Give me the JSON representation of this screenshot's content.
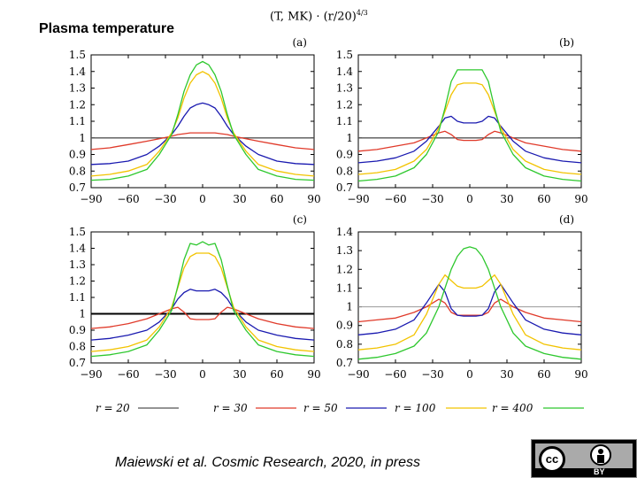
{
  "slide": {
    "title": "Plasma temperature",
    "formula": "(T, MK) · (r/20)",
    "formula_exp": "4/3",
    "citation": "Maiewski et al. Cosmic Research, 2020, in press"
  },
  "license": {
    "cc": "cc",
    "by": "BY"
  },
  "chart_data": [
    {
      "type": "line",
      "panel": "(a)",
      "xlim": [
        -90,
        90
      ],
      "ylim": [
        0.7,
        1.5
      ],
      "xticks": [
        -90,
        -60,
        -30,
        0,
        30,
        60,
        90
      ],
      "yticks": [
        0.7,
        0.8,
        0.9,
        1,
        1.1,
        1.2,
        1.3,
        1.4,
        1.5
      ],
      "x": [
        -90,
        -75,
        -60,
        -45,
        -35,
        -25,
        -20,
        -15,
        -10,
        -5,
        0,
        5,
        10,
        15,
        20,
        25,
        35,
        45,
        60,
        75,
        90
      ],
      "series": [
        {
          "name": "r = 20",
          "color": "#555555",
          "values": [
            1,
            1,
            1,
            1,
            1,
            1,
            1,
            1,
            1,
            1,
            1,
            1,
            1,
            1,
            1,
            1,
            1,
            1,
            1,
            1,
            1
          ]
        },
        {
          "name": "r = 30",
          "color": "#e03a2a",
          "values": [
            0.93,
            0.94,
            0.96,
            0.98,
            0.995,
            1.01,
            1.02,
            1.025,
            1.03,
            1.03,
            1.03,
            1.03,
            1.03,
            1.025,
            1.02,
            1.01,
            0.995,
            0.98,
            0.96,
            0.94,
            0.93
          ]
        },
        {
          "name": "r = 50",
          "color": "#1a1ab0",
          "values": [
            0.84,
            0.845,
            0.86,
            0.9,
            0.95,
            1.02,
            1.07,
            1.13,
            1.18,
            1.2,
            1.21,
            1.2,
            1.18,
            1.13,
            1.07,
            1.02,
            0.95,
            0.9,
            0.86,
            0.845,
            0.84
          ]
        },
        {
          "name": "r = 100",
          "color": "#f2c300",
          "values": [
            0.77,
            0.78,
            0.8,
            0.84,
            0.92,
            1.03,
            1.12,
            1.24,
            1.33,
            1.38,
            1.4,
            1.38,
            1.33,
            1.24,
            1.12,
            1.03,
            0.92,
            0.84,
            0.8,
            0.78,
            0.77
          ]
        },
        {
          "name": "r = 400",
          "color": "#2ec82e",
          "values": [
            0.745,
            0.75,
            0.77,
            0.81,
            0.9,
            1.02,
            1.14,
            1.28,
            1.38,
            1.44,
            1.46,
            1.44,
            1.38,
            1.28,
            1.14,
            1.02,
            0.9,
            0.81,
            0.77,
            0.75,
            0.745
          ]
        }
      ]
    },
    {
      "type": "line",
      "panel": "(b)",
      "xlim": [
        -90,
        90
      ],
      "ylim": [
        0.7,
        1.5
      ],
      "xticks": [
        -90,
        -60,
        -30,
        0,
        30,
        60,
        90
      ],
      "yticks": [
        0.7,
        0.8,
        0.9,
        1,
        1.1,
        1.2,
        1.3,
        1.4,
        1.5
      ],
      "x": [
        -90,
        -75,
        -60,
        -45,
        -35,
        -25,
        -20,
        -15,
        -10,
        -5,
        0,
        5,
        10,
        15,
        20,
        25,
        35,
        45,
        60,
        75,
        90
      ],
      "series": [
        {
          "name": "r = 20",
          "color": "#555555",
          "values": [
            1,
            1,
            1,
            1,
            1,
            1,
            1,
            1,
            1,
            1,
            1,
            1,
            1,
            1,
            1,
            1,
            1,
            1,
            1,
            1,
            1
          ]
        },
        {
          "name": "r = 30",
          "color": "#e03a2a",
          "values": [
            0.92,
            0.93,
            0.95,
            0.97,
            1.0,
            1.03,
            1.04,
            1.02,
            0.99,
            0.985,
            0.985,
            0.985,
            0.99,
            1.02,
            1.04,
            1.03,
            1.0,
            0.97,
            0.95,
            0.93,
            0.92
          ]
        },
        {
          "name": "r = 50",
          "color": "#1a1ab0",
          "values": [
            0.85,
            0.86,
            0.88,
            0.92,
            0.98,
            1.07,
            1.12,
            1.13,
            1.1,
            1.09,
            1.09,
            1.09,
            1.1,
            1.13,
            1.12,
            1.07,
            0.98,
            0.92,
            0.88,
            0.86,
            0.85
          ]
        },
        {
          "name": "r = 100",
          "color": "#f2c300",
          "values": [
            0.78,
            0.79,
            0.81,
            0.86,
            0.93,
            1.06,
            1.16,
            1.26,
            1.32,
            1.33,
            1.33,
            1.33,
            1.32,
            1.26,
            1.16,
            1.06,
            0.93,
            0.86,
            0.81,
            0.79,
            0.78
          ]
        },
        {
          "name": "r = 400",
          "color": "#2ec82e",
          "values": [
            0.74,
            0.75,
            0.77,
            0.82,
            0.9,
            1.04,
            1.18,
            1.34,
            1.41,
            1.41,
            1.41,
            1.41,
            1.41,
            1.34,
            1.18,
            1.04,
            0.9,
            0.82,
            0.77,
            0.75,
            0.74
          ]
        }
      ]
    },
    {
      "type": "line",
      "panel": "(c)",
      "xlim": [
        -90,
        90
      ],
      "ylim": [
        0.7,
        1.5
      ],
      "xticks": [
        -90,
        -60,
        -30,
        0,
        30,
        60,
        90
      ],
      "yticks": [
        0.7,
        0.8,
        0.9,
        1,
        1.1,
        1.2,
        1.3,
        1.4,
        1.5
      ],
      "x": [
        -90,
        -75,
        -60,
        -45,
        -35,
        -25,
        -20,
        -15,
        -10,
        -5,
        0,
        5,
        10,
        15,
        20,
        25,
        35,
        45,
        60,
        75,
        90
      ],
      "series": [
        {
          "name": "r = 20",
          "color": "#555555",
          "values": [
            1,
            1,
            1,
            1,
            1,
            1,
            1,
            1,
            1,
            1,
            1,
            1,
            1,
            1,
            1,
            1,
            1,
            1,
            1,
            1,
            1
          ]
        },
        {
          "name": "r = 30",
          "color": "#e03a2a",
          "values": [
            0.91,
            0.92,
            0.94,
            0.97,
            1.0,
            1.03,
            1.04,
            1.01,
            0.97,
            0.965,
            0.965,
            0.965,
            0.97,
            1.01,
            1.04,
            1.03,
            1.0,
            0.97,
            0.94,
            0.92,
            0.91
          ]
        },
        {
          "name": "r = 50",
          "color": "#1a1ab0",
          "values": [
            0.84,
            0.85,
            0.87,
            0.9,
            0.95,
            1.03,
            1.09,
            1.13,
            1.15,
            1.14,
            1.14,
            1.14,
            1.15,
            1.13,
            1.09,
            1.03,
            0.95,
            0.9,
            0.87,
            0.85,
            0.84
          ]
        },
        {
          "name": "r = 100",
          "color": "#f2c300",
          "values": [
            0.77,
            0.78,
            0.8,
            0.84,
            0.92,
            1.04,
            1.16,
            1.28,
            1.35,
            1.37,
            1.37,
            1.37,
            1.35,
            1.28,
            1.16,
            1.04,
            0.92,
            0.84,
            0.8,
            0.78,
            0.77
          ]
        },
        {
          "name": "r = 400",
          "color": "#2ec82e",
          "values": [
            0.74,
            0.75,
            0.77,
            0.81,
            0.9,
            1.02,
            1.17,
            1.33,
            1.43,
            1.42,
            1.44,
            1.42,
            1.43,
            1.33,
            1.17,
            1.02,
            0.9,
            0.81,
            0.77,
            0.75,
            0.74
          ]
        }
      ]
    },
    {
      "type": "line",
      "panel": "(d)",
      "xlim": [
        -90,
        90
      ],
      "ylim": [
        0.7,
        1.4
      ],
      "xticks": [
        -90,
        -60,
        -30,
        0,
        30,
        60,
        90
      ],
      "yticks": [
        0.7,
        0.8,
        0.9,
        1,
        1.1,
        1.2,
        1.3,
        1.4
      ],
      "x": [
        -90,
        -75,
        -60,
        -45,
        -35,
        -25,
        -20,
        -15,
        -10,
        -5,
        0,
        5,
        10,
        15,
        20,
        25,
        35,
        45,
        60,
        75,
        90
      ],
      "series": [
        {
          "name": "r = 20",
          "color": "#555555",
          "values": [
            1,
            1,
            1,
            1,
            1,
            1,
            1,
            1,
            1,
            1,
            1,
            1,
            1,
            1,
            1,
            1,
            1,
            1,
            1,
            1,
            1
          ]
        },
        {
          "name": "r = 30",
          "color": "#e03a2a",
          "values": [
            0.92,
            0.93,
            0.94,
            0.97,
            1.0,
            1.04,
            1.02,
            0.97,
            0.955,
            0.955,
            0.955,
            0.955,
            0.955,
            0.97,
            1.02,
            1.04,
            1.0,
            0.97,
            0.94,
            0.93,
            0.92
          ]
        },
        {
          "name": "r = 50",
          "color": "#1a1ab0",
          "values": [
            0.85,
            0.86,
            0.88,
            0.93,
            1.02,
            1.12,
            1.08,
            0.99,
            0.955,
            0.95,
            0.95,
            0.95,
            0.955,
            0.99,
            1.08,
            1.12,
            1.02,
            0.93,
            0.88,
            0.86,
            0.85
          ]
        },
        {
          "name": "r = 100",
          "color": "#f2c300",
          "values": [
            0.77,
            0.78,
            0.8,
            0.85,
            0.96,
            1.12,
            1.17,
            1.14,
            1.11,
            1.1,
            1.1,
            1.1,
            1.11,
            1.14,
            1.17,
            1.12,
            0.96,
            0.85,
            0.8,
            0.78,
            0.77
          ]
        },
        {
          "name": "r = 400",
          "color": "#2ec82e",
          "values": [
            0.72,
            0.73,
            0.75,
            0.79,
            0.86,
            1.0,
            1.1,
            1.2,
            1.27,
            1.31,
            1.32,
            1.31,
            1.27,
            1.2,
            1.1,
            1.0,
            0.86,
            0.79,
            0.75,
            0.73,
            0.72
          ]
        }
      ]
    }
  ],
  "legend": {
    "placement": "bottom",
    "entries": [
      {
        "label": "r = 20",
        "color": "#555555"
      },
      {
        "label": "r = 30",
        "color": "#e03a2a"
      },
      {
        "label": "r = 50",
        "color": "#1a1ab0"
      },
      {
        "label": "r = 100",
        "color": "#f2c300"
      },
      {
        "label": "r = 400",
        "color": "#2ec82e"
      }
    ]
  }
}
